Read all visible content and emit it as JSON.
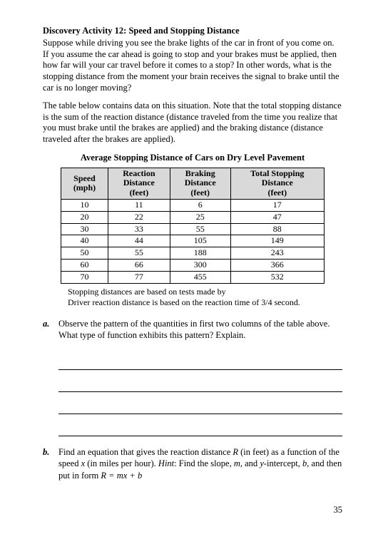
{
  "header": {
    "activity_label": "Discovery Activity 12:",
    "activity_title": "Speed and Stopping Distance"
  },
  "intro": {
    "p1": "Suppose while driving you see the brake lights of the car in front of you come on. If you assume the car ahead is going to stop and your brakes must be applied, then how far will your car travel before it comes to a stop? In other words, what is the stopping distance from the moment your brain receives the signal to brake until the car is no longer moving?",
    "p2": "The table below contains data on this situation. Note that the total stopping distance is the sum of the reaction distance (distance traveled from the time you realize that you must brake until the brakes are applied) and the braking distance (distance traveled after the brakes are applied)."
  },
  "table": {
    "title": "Average Stopping Distance of Cars on Dry Level Pavement",
    "columns": [
      {
        "line1": "Speed",
        "line2": "(mph)"
      },
      {
        "line1": "Reaction",
        "line2": "Distance",
        "line3": "(feet)"
      },
      {
        "line1": "Braking",
        "line2": "Distance",
        "line3": "(feet)"
      },
      {
        "line1": "Total Stopping",
        "line2": "Distance",
        "line3": "(feet)"
      }
    ],
    "rows": [
      [
        "10",
        "11",
        "6",
        "17"
      ],
      [
        "20",
        "22",
        "25",
        "47"
      ],
      [
        "30",
        "33",
        "55",
        "88"
      ],
      [
        "40",
        "44",
        "105",
        "149"
      ],
      [
        "50",
        "55",
        "188",
        "243"
      ],
      [
        "60",
        "66",
        "300",
        "366"
      ],
      [
        "70",
        "77",
        "455",
        "532"
      ]
    ],
    "footnote1": "Stopping distances are based on tests made by",
    "footnote2": "Driver reaction distance is based on the reaction time of 3/4 second."
  },
  "questions": {
    "a": {
      "marker": "a.",
      "text": "Observe the pattern of the quantities in first two columns of the table above. What type of function exhibits this pattern? Explain."
    },
    "b": {
      "marker": "b.",
      "text_pre": "Find an equation that gives the reaction distance ",
      "R": "R",
      "text_mid1": " (in feet) as a function of the speed ",
      "x": "x",
      "text_mid2": " (in miles per hour). ",
      "hint_label": "Hint",
      "hint_text": ": Find the slope, ",
      "m": "m",
      "hint_text2": ", and ",
      "yint": "y",
      "hint_text3": "-intercept, ",
      "bvar": "b",
      "hint_text4": ", and then put in form ",
      "formula": "R = mx + b"
    }
  },
  "page_number": "35"
}
